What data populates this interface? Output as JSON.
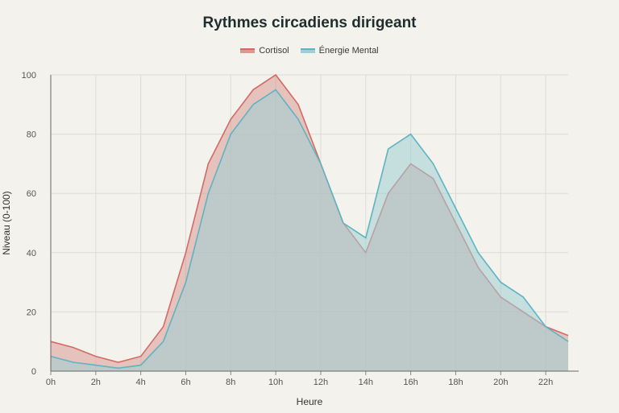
{
  "chart_data": {
    "type": "area",
    "title": "Rythmes circadiens dirigeant",
    "xlabel": "Heure",
    "ylabel": "Niveau (0-100)",
    "ylim": [
      0,
      100
    ],
    "yticks": [
      0,
      20,
      40,
      60,
      80,
      100
    ],
    "x": [
      0,
      1,
      2,
      3,
      4,
      5,
      6,
      7,
      8,
      9,
      10,
      11,
      12,
      13,
      14,
      15,
      16,
      17,
      18,
      19,
      20,
      21,
      22,
      23
    ],
    "xticks": [
      "0h",
      "2h",
      "4h",
      "6h",
      "8h",
      "10h",
      "12h",
      "14h",
      "16h",
      "18h",
      "20h",
      "22h"
    ],
    "grid": true,
    "legend_position": "top-center",
    "series": [
      {
        "name": "Cortisol",
        "color": "#d46a66",
        "fill": "#d99a94",
        "values": [
          10,
          8,
          5,
          3,
          5,
          15,
          40,
          70,
          85,
          95,
          100,
          90,
          70,
          50,
          40,
          60,
          70,
          65,
          50,
          35,
          25,
          20,
          15,
          12
        ]
      },
      {
        "name": "Énergie Mental",
        "color": "#5fb3c2",
        "fill": "#9fcfd4",
        "values": [
          5,
          3,
          2,
          1,
          2,
          10,
          30,
          60,
          80,
          90,
          95,
          85,
          70,
          50,
          45,
          75,
          80,
          70,
          55,
          40,
          30,
          25,
          15,
          10
        ]
      }
    ]
  }
}
